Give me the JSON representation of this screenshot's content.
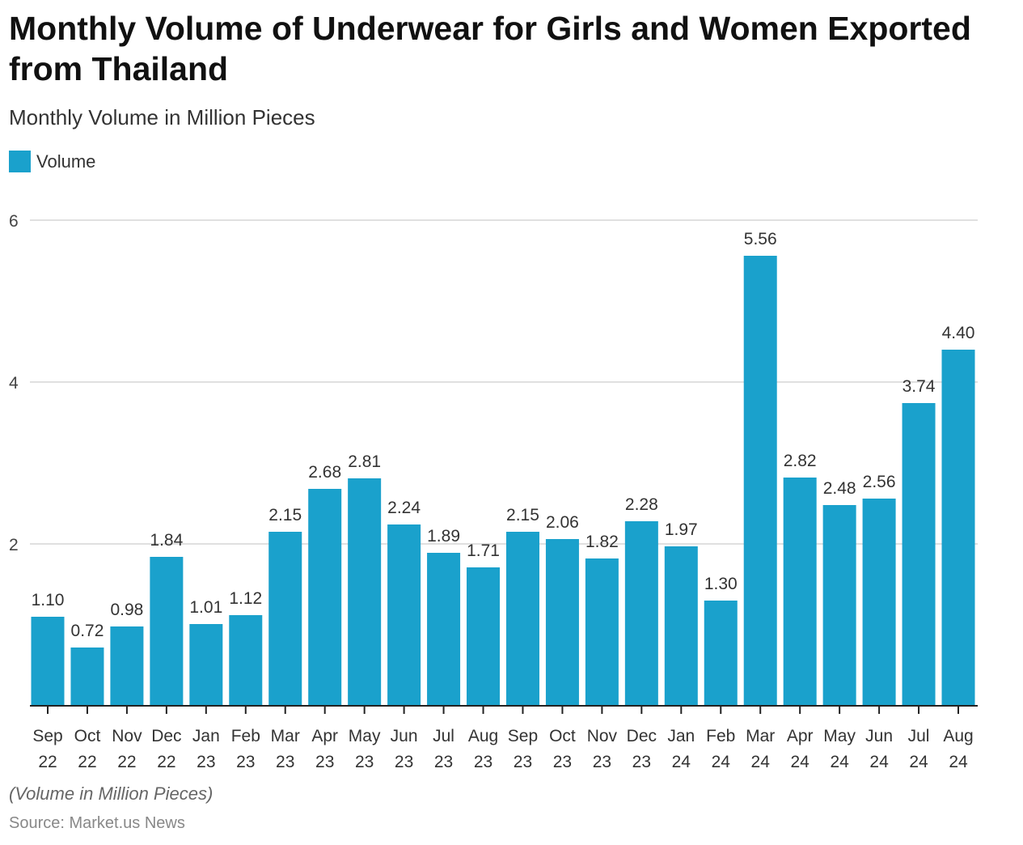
{
  "chart_data": {
    "type": "bar",
    "title": "Monthly Volume of Underwear for Girls and Women Exported from Thailand",
    "subtitle": "Monthly Volume in Million Pieces",
    "legend": {
      "position": "top-left",
      "entries": [
        "Volume"
      ]
    },
    "categories": [
      [
        "Sep",
        "22"
      ],
      [
        "Oct",
        "22"
      ],
      [
        "Nov",
        "22"
      ],
      [
        "Dec",
        "22"
      ],
      [
        "Jan",
        "23"
      ],
      [
        "Feb",
        "23"
      ],
      [
        "Mar",
        "23"
      ],
      [
        "Apr",
        "23"
      ],
      [
        "May",
        "23"
      ],
      [
        "Jun",
        "23"
      ],
      [
        "Jul",
        "23"
      ],
      [
        "Aug",
        "23"
      ],
      [
        "Sep",
        "23"
      ],
      [
        "Oct",
        "23"
      ],
      [
        "Nov",
        "23"
      ],
      [
        "Dec",
        "23"
      ],
      [
        "Jan",
        "24"
      ],
      [
        "Feb",
        "24"
      ],
      [
        "Mar",
        "24"
      ],
      [
        "Apr",
        "24"
      ],
      [
        "May",
        "24"
      ],
      [
        "Jun",
        "24"
      ],
      [
        "Jul",
        "24"
      ],
      [
        "Aug",
        "24"
      ]
    ],
    "series": [
      {
        "name": "Volume",
        "color": "#1aa1cc",
        "values": [
          1.1,
          0.72,
          0.98,
          1.84,
          1.01,
          1.12,
          2.15,
          2.68,
          2.81,
          2.24,
          1.89,
          1.71,
          2.15,
          2.06,
          1.82,
          2.28,
          1.97,
          1.3,
          5.56,
          2.82,
          2.48,
          2.56,
          3.74,
          4.4
        ]
      }
    ],
    "ylim": [
      0,
      6
    ],
    "yticks": [
      2,
      4,
      6
    ],
    "grid": true,
    "xlabel": "",
    "ylabel": "",
    "note": "(Volume in Million Pieces)",
    "source": "Source: Market.us News"
  }
}
